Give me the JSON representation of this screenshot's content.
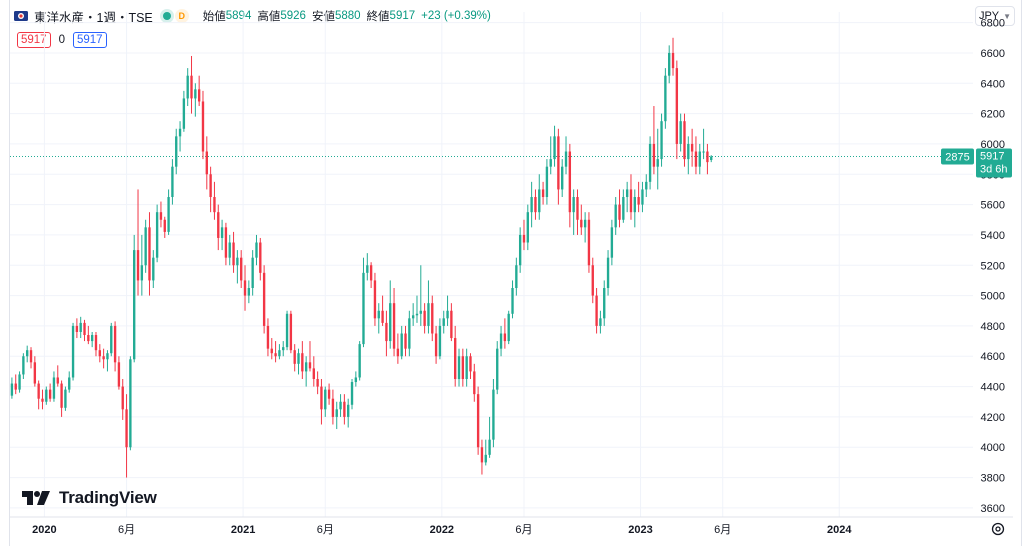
{
  "header": {
    "symbol_title": "東洋水産・1週・TSE",
    "d_badge": "D",
    "open_label": "始値",
    "open_value": "5894",
    "high_label": "高値",
    "high_value": "5926",
    "low_label": "安値",
    "low_value": "5880",
    "close_label": "終値",
    "close_value": "5917",
    "change": "+23 (+0.39%)"
  },
  "indicator": {
    "left_value": "5917",
    "middle_value": "0",
    "right_value": "5917"
  },
  "currency_button": "JPY",
  "price_tags": {
    "left_tag": "2875",
    "price": "5917",
    "countdown": "3d 6h"
  },
  "logo_text": "TradingView",
  "colors": {
    "up": "#22ab94",
    "down": "#f23645",
    "grid": "#f0f3fa",
    "axis_text": "#131722"
  },
  "chart_data": {
    "type": "candlestick",
    "title": "",
    "y_ticks": [
      3600,
      3800,
      4000,
      4200,
      4400,
      4600,
      4800,
      5000,
      5200,
      5400,
      5600,
      5800,
      6000,
      6200,
      6400,
      6600,
      6800
    ],
    "ylim": [
      3540,
      6870
    ],
    "x_ticks": [
      {
        "label": "2020",
        "pos": 8.5
      },
      {
        "label": "6月",
        "pos": 30
      },
      {
        "label": "2021",
        "pos": 60.5
      },
      {
        "label": "6月",
        "pos": 82
      },
      {
        "label": "2022",
        "pos": 112.5
      },
      {
        "label": "6月",
        "pos": 134
      },
      {
        "label": "2023",
        "pos": 164.5
      },
      {
        "label": "6月",
        "pos": 186
      },
      {
        "label": "2024",
        "pos": 216.5
      }
    ],
    "xlim": [
      -0.5,
      251.5
    ],
    "grid": true,
    "last_price": 5917,
    "weeks": [
      {
        "o": 4340,
        "h": 4460,
        "l": 4320,
        "c": 4420
      },
      {
        "o": 4420,
        "h": 4480,
        "l": 4350,
        "c": 4380
      },
      {
        "o": 4380,
        "h": 4500,
        "l": 4360,
        "c": 4480
      },
      {
        "o": 4480,
        "h": 4620,
        "l": 4450,
        "c": 4600
      },
      {
        "o": 4600,
        "h": 4670,
        "l": 4560,
        "c": 4640
      },
      {
        "o": 4640,
        "h": 4660,
        "l": 4520,
        "c": 4560
      },
      {
        "o": 4560,
        "h": 4600,
        "l": 4400,
        "c": 4420
      },
      {
        "o": 4420,
        "h": 4440,
        "l": 4250,
        "c": 4320
      },
      {
        "o": 4320,
        "h": 4380,
        "l": 4250,
        "c": 4300
      },
      {
        "o": 4300,
        "h": 4400,
        "l": 4280,
        "c": 4380
      },
      {
        "o": 4380,
        "h": 4420,
        "l": 4300,
        "c": 4320
      },
      {
        "o": 4320,
        "h": 4500,
        "l": 4300,
        "c": 4460
      },
      {
        "o": 4460,
        "h": 4540,
        "l": 4400,
        "c": 4420
      },
      {
        "o": 4420,
        "h": 4440,
        "l": 4200,
        "c": 4260
      },
      {
        "o": 4260,
        "h": 4400,
        "l": 4240,
        "c": 4380
      },
      {
        "o": 4380,
        "h": 4500,
        "l": 4360,
        "c": 4460
      },
      {
        "o": 4460,
        "h": 4820,
        "l": 4440,
        "c": 4800
      },
      {
        "o": 4800,
        "h": 4850,
        "l": 4720,
        "c": 4760
      },
      {
        "o": 4760,
        "h": 4860,
        "l": 4720,
        "c": 4820
      },
      {
        "o": 4820,
        "h": 4840,
        "l": 4700,
        "c": 4740
      },
      {
        "o": 4740,
        "h": 4800,
        "l": 4680,
        "c": 4700
      },
      {
        "o": 4700,
        "h": 4760,
        "l": 4660,
        "c": 4740
      },
      {
        "o": 4740,
        "h": 4760,
        "l": 4600,
        "c": 4640
      },
      {
        "o": 4640,
        "h": 4680,
        "l": 4560,
        "c": 4600
      },
      {
        "o": 4600,
        "h": 4650,
        "l": 4520,
        "c": 4580
      },
      {
        "o": 4580,
        "h": 4640,
        "l": 4500,
        "c": 4620
      },
      {
        "o": 4620,
        "h": 4820,
        "l": 4600,
        "c": 4800
      },
      {
        "o": 4800,
        "h": 4830,
        "l": 4500,
        "c": 4560
      },
      {
        "o": 4560,
        "h": 4600,
        "l": 4380,
        "c": 4400
      },
      {
        "o": 4400,
        "h": 4450,
        "l": 4180,
        "c": 4250
      },
      {
        "o": 4250,
        "h": 4350,
        "l": 3800,
        "c": 4000
      },
      {
        "o": 4000,
        "h": 4600,
        "l": 3980,
        "c": 4580
      },
      {
        "o": 4580,
        "h": 5400,
        "l": 4560,
        "c": 5300
      },
      {
        "o": 5300,
        "h": 5700,
        "l": 5000,
        "c": 5100
      },
      {
        "o": 5100,
        "h": 5400,
        "l": 5000,
        "c": 5200
      },
      {
        "o": 5200,
        "h": 5500,
        "l": 5150,
        "c": 5450
      },
      {
        "o": 5450,
        "h": 5550,
        "l": 5000,
        "c": 5100
      },
      {
        "o": 5100,
        "h": 5300,
        "l": 5050,
        "c": 5250
      },
      {
        "o": 5250,
        "h": 5600,
        "l": 5220,
        "c": 5550
      },
      {
        "o": 5550,
        "h": 5620,
        "l": 5450,
        "c": 5500
      },
      {
        "o": 5500,
        "h": 5520,
        "l": 5380,
        "c": 5420
      },
      {
        "o": 5420,
        "h": 5700,
        "l": 5400,
        "c": 5650
      },
      {
        "o": 5650,
        "h": 5900,
        "l": 5600,
        "c": 5850
      },
      {
        "o": 5850,
        "h": 6100,
        "l": 5800,
        "c": 6050
      },
      {
        "o": 6050,
        "h": 6150,
        "l": 5950,
        "c": 6100
      },
      {
        "o": 6100,
        "h": 6350,
        "l": 6080,
        "c": 6300
      },
      {
        "o": 6300,
        "h": 6500,
        "l": 6250,
        "c": 6450
      },
      {
        "o": 6450,
        "h": 6580,
        "l": 6200,
        "c": 6300
      },
      {
        "o": 6300,
        "h": 6400,
        "l": 6180,
        "c": 6360
      },
      {
        "o": 6360,
        "h": 6450,
        "l": 6250,
        "c": 6280
      },
      {
        "o": 6280,
        "h": 6350,
        "l": 5900,
        "c": 5950
      },
      {
        "o": 5950,
        "h": 6050,
        "l": 5700,
        "c": 5800
      },
      {
        "o": 5800,
        "h": 5850,
        "l": 5550,
        "c": 5650
      },
      {
        "o": 5650,
        "h": 5750,
        "l": 5500,
        "c": 5550
      },
      {
        "o": 5550,
        "h": 5600,
        "l": 5300,
        "c": 5380
      },
      {
        "o": 5380,
        "h": 5500,
        "l": 5300,
        "c": 5450
      },
      {
        "o": 5450,
        "h": 5480,
        "l": 5200,
        "c": 5250
      },
      {
        "o": 5250,
        "h": 5400,
        "l": 5200,
        "c": 5350
      },
      {
        "o": 5350,
        "h": 5420,
        "l": 5150,
        "c": 5200
      },
      {
        "o": 5200,
        "h": 5300,
        "l": 5080,
        "c": 5250
      },
      {
        "o": 5250,
        "h": 5300,
        "l": 5050,
        "c": 5100
      },
      {
        "o": 5100,
        "h": 5200,
        "l": 4900,
        "c": 5000
      },
      {
        "o": 5000,
        "h": 5100,
        "l": 4950,
        "c": 5050
      },
      {
        "o": 5050,
        "h": 5300,
        "l": 5000,
        "c": 5250
      },
      {
        "o": 5250,
        "h": 5400,
        "l": 5200,
        "c": 5350
      },
      {
        "o": 5350,
        "h": 5380,
        "l": 5100,
        "c": 5150
      },
      {
        "o": 5150,
        "h": 5200,
        "l": 4750,
        "c": 4800
      },
      {
        "o": 4800,
        "h": 4850,
        "l": 4600,
        "c": 4650
      },
      {
        "o": 4650,
        "h": 4720,
        "l": 4580,
        "c": 4620
      },
      {
        "o": 4620,
        "h": 4700,
        "l": 4560,
        "c": 4600
      },
      {
        "o": 4600,
        "h": 4680,
        "l": 4580,
        "c": 4640
      },
      {
        "o": 4640,
        "h": 4700,
        "l": 4600,
        "c": 4660
      },
      {
        "o": 4660,
        "h": 4900,
        "l": 4640,
        "c": 4880
      },
      {
        "o": 4880,
        "h": 4900,
        "l": 4620,
        "c": 4640
      },
      {
        "o": 4640,
        "h": 4680,
        "l": 4500,
        "c": 4550
      },
      {
        "o": 4550,
        "h": 4650,
        "l": 4480,
        "c": 4620
      },
      {
        "o": 4620,
        "h": 4700,
        "l": 4450,
        "c": 4500
      },
      {
        "o": 4500,
        "h": 4600,
        "l": 4400,
        "c": 4560
      },
      {
        "o": 4560,
        "h": 4700,
        "l": 4500,
        "c": 4520
      },
      {
        "o": 4520,
        "h": 4600,
        "l": 4400,
        "c": 4450
      },
      {
        "o": 4450,
        "h": 4500,
        "l": 4350,
        "c": 4400
      },
      {
        "o": 4400,
        "h": 4450,
        "l": 4150,
        "c": 4250
      },
      {
        "o": 4250,
        "h": 4400,
        "l": 4200,
        "c": 4380
      },
      {
        "o": 4380,
        "h": 4420,
        "l": 4280,
        "c": 4320
      },
      {
        "o": 4320,
        "h": 4380,
        "l": 4150,
        "c": 4200
      },
      {
        "o": 4200,
        "h": 4300,
        "l": 4120,
        "c": 4250
      },
      {
        "o": 4250,
        "h": 4350,
        "l": 4200,
        "c": 4300
      },
      {
        "o": 4300,
        "h": 4350,
        "l": 4150,
        "c": 4200
      },
      {
        "o": 4200,
        "h": 4320,
        "l": 4130,
        "c": 4280
      },
      {
        "o": 4280,
        "h": 4450,
        "l": 4250,
        "c": 4430
      },
      {
        "o": 4430,
        "h": 4500,
        "l": 4400,
        "c": 4460
      },
      {
        "o": 4460,
        "h": 4700,
        "l": 4440,
        "c": 4680
      },
      {
        "o": 4680,
        "h": 5250,
        "l": 4660,
        "c": 5150
      },
      {
        "o": 5150,
        "h": 5280,
        "l": 5100,
        "c": 5200
      },
      {
        "o": 5200,
        "h": 5220,
        "l": 5050,
        "c": 5100
      },
      {
        "o": 5100,
        "h": 5150,
        "l": 4800,
        "c": 4850
      },
      {
        "o": 4850,
        "h": 4950,
        "l": 4750,
        "c": 4900
      },
      {
        "o": 4900,
        "h": 5000,
        "l": 4800,
        "c": 4820
      },
      {
        "o": 4820,
        "h": 4900,
        "l": 4600,
        "c": 4700
      },
      {
        "o": 4700,
        "h": 5100,
        "l": 4650,
        "c": 4950
      },
      {
        "o": 4950,
        "h": 5050,
        "l": 4600,
        "c": 4650
      },
      {
        "o": 4650,
        "h": 4750,
        "l": 4550,
        "c": 4600
      },
      {
        "o": 4600,
        "h": 4800,
        "l": 4580,
        "c": 4750
      },
      {
        "o": 4750,
        "h": 4800,
        "l": 4600,
        "c": 4650
      },
      {
        "o": 4650,
        "h": 4900,
        "l": 4600,
        "c": 4850
      },
      {
        "o": 4850,
        "h": 4950,
        "l": 4800,
        "c": 4870
      },
      {
        "o": 4870,
        "h": 5000,
        "l": 4820,
        "c": 4880
      },
      {
        "o": 4880,
        "h": 5200,
        "l": 4800,
        "c": 4900
      },
      {
        "o": 4900,
        "h": 4950,
        "l": 4750,
        "c": 4800
      },
      {
        "o": 4800,
        "h": 5100,
        "l": 4750,
        "c": 4950
      },
      {
        "o": 4950,
        "h": 5000,
        "l": 4700,
        "c": 4750
      },
      {
        "o": 4750,
        "h": 4800,
        "l": 4550,
        "c": 4600
      },
      {
        "o": 4600,
        "h": 4850,
        "l": 4580,
        "c": 4800
      },
      {
        "o": 4800,
        "h": 4900,
        "l": 4750,
        "c": 4850
      },
      {
        "o": 4850,
        "h": 5000,
        "l": 4800,
        "c": 4900
      },
      {
        "o": 4900,
        "h": 4950,
        "l": 4700,
        "c": 4720
      },
      {
        "o": 4720,
        "h": 4800,
        "l": 4400,
        "c": 4450
      },
      {
        "o": 4450,
        "h": 4650,
        "l": 4400,
        "c": 4600
      },
      {
        "o": 4600,
        "h": 4650,
        "l": 4400,
        "c": 4450
      },
      {
        "o": 4450,
        "h": 4650,
        "l": 4400,
        "c": 4600
      },
      {
        "o": 4600,
        "h": 4620,
        "l": 4450,
        "c": 4500
      },
      {
        "o": 4500,
        "h": 4550,
        "l": 4300,
        "c": 4350
      },
      {
        "o": 4350,
        "h": 4400,
        "l": 3950,
        "c": 4000
      },
      {
        "o": 4000,
        "h": 4050,
        "l": 3820,
        "c": 3900
      },
      {
        "o": 3900,
        "h": 4050,
        "l": 3880,
        "c": 3950
      },
      {
        "o": 3950,
        "h": 4200,
        "l": 3930,
        "c": 4050
      },
      {
        "o": 4050,
        "h": 4450,
        "l": 4000,
        "c": 4380
      },
      {
        "o": 4380,
        "h": 4700,
        "l": 4350,
        "c": 4650
      },
      {
        "o": 4650,
        "h": 4800,
        "l": 4600,
        "c": 4750
      },
      {
        "o": 4750,
        "h": 4850,
        "l": 4650,
        "c": 4700
      },
      {
        "o": 4700,
        "h": 4900,
        "l": 4680,
        "c": 4880
      },
      {
        "o": 4880,
        "h": 5100,
        "l": 4850,
        "c": 5050
      },
      {
        "o": 5050,
        "h": 5250,
        "l": 5000,
        "c": 5200
      },
      {
        "o": 5200,
        "h": 5450,
        "l": 5150,
        "c": 5400
      },
      {
        "o": 5400,
        "h": 5500,
        "l": 5300,
        "c": 5350
      },
      {
        "o": 5350,
        "h": 5600,
        "l": 5300,
        "c": 5550
      },
      {
        "o": 5550,
        "h": 5750,
        "l": 5450,
        "c": 5650
      },
      {
        "o": 5650,
        "h": 5700,
        "l": 5500,
        "c": 5550
      },
      {
        "o": 5550,
        "h": 5800,
        "l": 5500,
        "c": 5700
      },
      {
        "o": 5700,
        "h": 5750,
        "l": 5600,
        "c": 5650
      },
      {
        "o": 5650,
        "h": 5900,
        "l": 5600,
        "c": 5850
      },
      {
        "o": 5850,
        "h": 6050,
        "l": 5800,
        "c": 5900
      },
      {
        "o": 5900,
        "h": 6120,
        "l": 5850,
        "c": 6050
      },
      {
        "o": 6050,
        "h": 6100,
        "l": 5600,
        "c": 5700
      },
      {
        "o": 5700,
        "h": 5900,
        "l": 5650,
        "c": 5850
      },
      {
        "o": 5850,
        "h": 6050,
        "l": 5800,
        "c": 5950
      },
      {
        "o": 5950,
        "h": 6000,
        "l": 5450,
        "c": 5550
      },
      {
        "o": 5550,
        "h": 5700,
        "l": 5400,
        "c": 5650
      },
      {
        "o": 5650,
        "h": 5700,
        "l": 5400,
        "c": 5500
      },
      {
        "o": 5500,
        "h": 5600,
        "l": 5400,
        "c": 5450
      },
      {
        "o": 5450,
        "h": 5550,
        "l": 5350,
        "c": 5500
      },
      {
        "o": 5500,
        "h": 5550,
        "l": 5150,
        "c": 5200
      },
      {
        "o": 5200,
        "h": 5250,
        "l": 4950,
        "c": 5000
      },
      {
        "o": 5000,
        "h": 5050,
        "l": 4750,
        "c": 4800
      },
      {
        "o": 4800,
        "h": 4900,
        "l": 4750,
        "c": 4850
      },
      {
        "o": 4850,
        "h": 5100,
        "l": 4800,
        "c": 5050
      },
      {
        "o": 5050,
        "h": 5300,
        "l": 5000,
        "c": 5250
      },
      {
        "o": 5250,
        "h": 5500,
        "l": 5200,
        "c": 5450
      },
      {
        "o": 5450,
        "h": 5650,
        "l": 5400,
        "c": 5600
      },
      {
        "o": 5600,
        "h": 5700,
        "l": 5450,
        "c": 5500
      },
      {
        "o": 5500,
        "h": 5700,
        "l": 5480,
        "c": 5650
      },
      {
        "o": 5650,
        "h": 5750,
        "l": 5550,
        "c": 5700
      },
      {
        "o": 5700,
        "h": 5800,
        "l": 5500,
        "c": 5550
      },
      {
        "o": 5550,
        "h": 5700,
        "l": 5450,
        "c": 5650
      },
      {
        "o": 5650,
        "h": 5750,
        "l": 5550,
        "c": 5600
      },
      {
        "o": 5600,
        "h": 5750,
        "l": 5550,
        "c": 5700
      },
      {
        "o": 5700,
        "h": 5800,
        "l": 5650,
        "c": 5750
      },
      {
        "o": 5750,
        "h": 6050,
        "l": 5700,
        "c": 6000
      },
      {
        "o": 6000,
        "h": 6250,
        "l": 5800,
        "c": 5850
      },
      {
        "o": 5850,
        "h": 6100,
        "l": 5700,
        "c": 5900
      },
      {
        "o": 5900,
        "h": 6200,
        "l": 5850,
        "c": 6150
      },
      {
        "o": 6150,
        "h": 6500,
        "l": 6100,
        "c": 6450
      },
      {
        "o": 6450,
        "h": 6650,
        "l": 6400,
        "c": 6600
      },
      {
        "o": 6600,
        "h": 6700,
        "l": 6450,
        "c": 6500
      },
      {
        "o": 6500,
        "h": 6550,
        "l": 5900,
        "c": 6000
      },
      {
        "o": 6000,
        "h": 6200,
        "l": 5950,
        "c": 6150
      },
      {
        "o": 6150,
        "h": 6200,
        "l": 5850,
        "c": 5900
      },
      {
        "o": 5900,
        "h": 6050,
        "l": 5800,
        "c": 6000
      },
      {
        "o": 6000,
        "h": 6100,
        "l": 5850,
        "c": 5950
      },
      {
        "o": 5950,
        "h": 6050,
        "l": 5800,
        "c": 5850
      },
      {
        "o": 5850,
        "h": 6000,
        "l": 5800,
        "c": 5950
      },
      {
        "o": 5950,
        "h": 6100,
        "l": 5900,
        "c": 5950
      },
      {
        "o": 5950,
        "h": 6000,
        "l": 5800,
        "c": 5880
      },
      {
        "o": 5894,
        "h": 5926,
        "l": 5880,
        "c": 5917
      }
    ]
  }
}
